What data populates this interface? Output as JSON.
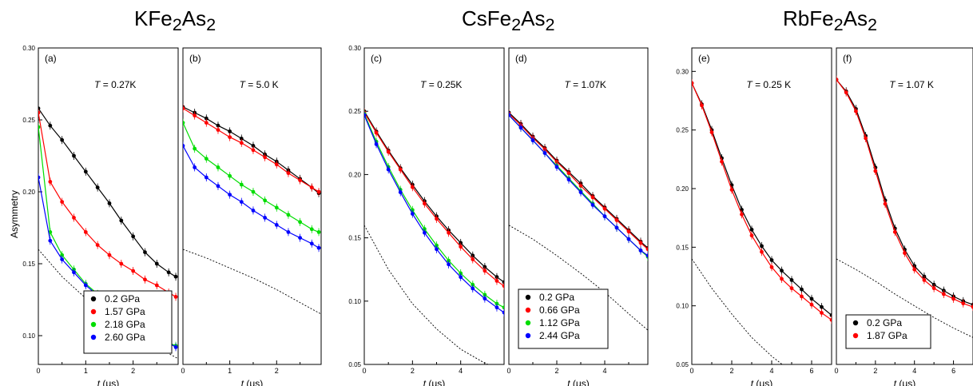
{
  "figure": {
    "titles": [
      {
        "text": "KFe",
        "sub1": "2",
        "mid": "As",
        "sub2": "2"
      },
      {
        "text": "CsFe",
        "sub1": "2",
        "mid": "As",
        "sub2": "2"
      },
      {
        "text": "RbFe",
        "sub1": "2",
        "mid": "As",
        "sub2": "2"
      }
    ],
    "ylabel": "Asymmetry",
    "colors": {
      "0.2 GPa": "#000000",
      "1.57 GPa": "#ff0000",
      "2.18 GPa": "#00dd00",
      "2.60 GPa": "#0000ff",
      "0.66 GPa": "#ff0000",
      "1.12 GPa": "#00dd00",
      "2.44 GPa": "#0000ff",
      "1.87 GPa": "#ff0000"
    }
  },
  "chart_data": [
    {
      "type": "scatter",
      "panel": "(a)",
      "group": "KFe2As2",
      "annotation": {
        "prefix": "T",
        "value": " = 0.27K"
      },
      "xlabel": "t (μs)",
      "xlim": [
        0,
        2.95
      ],
      "xticks": [
        0,
        1,
        2
      ],
      "ylim": [
        0.08,
        0.3
      ],
      "yticks": [
        0.1,
        0.15,
        0.2,
        0.25,
        0.3
      ],
      "legend": "bottom-right",
      "series": [
        {
          "name": "0.2 GPa",
          "x": [
            0,
            0.25,
            0.5,
            0.75,
            1.0,
            1.25,
            1.5,
            1.75,
            2.0,
            2.25,
            2.5,
            2.75,
            2.9
          ],
          "y": [
            0.258,
            0.246,
            0.236,
            0.225,
            0.214,
            0.203,
            0.192,
            0.18,
            0.169,
            0.158,
            0.15,
            0.144,
            0.141
          ]
        },
        {
          "name": "1.57 GPa",
          "x": [
            0,
            0.25,
            0.5,
            0.75,
            1.0,
            1.25,
            1.5,
            1.75,
            2.0,
            2.25,
            2.5,
            2.75,
            2.9
          ],
          "y": [
            0.255,
            0.207,
            0.193,
            0.182,
            0.172,
            0.163,
            0.156,
            0.15,
            0.145,
            0.139,
            0.135,
            0.13,
            0.127
          ]
        },
        {
          "name": "2.18 GPa",
          "x": [
            0,
            0.25,
            0.5,
            0.75,
            1.0,
            1.25,
            1.5,
            1.75,
            2.0,
            2.25,
            2.5,
            2.75,
            2.9
          ],
          "y": [
            0.245,
            0.172,
            0.156,
            0.146,
            0.136,
            0.129,
            0.122,
            0.115,
            0.11,
            0.104,
            0.099,
            0.095,
            0.093
          ]
        },
        {
          "name": "2.60 GPa",
          "x": [
            0,
            0.25,
            0.5,
            0.75,
            1.0,
            1.25,
            1.5,
            1.75,
            2.0,
            2.25,
            2.5,
            2.75,
            2.9
          ],
          "y": [
            0.21,
            0.166,
            0.153,
            0.144,
            0.135,
            0.128,
            0.121,
            0.114,
            0.109,
            0.103,
            0.099,
            0.095,
            0.092
          ]
        }
      ],
      "reference_curve": {
        "x": [
          0,
          0.5,
          1.0,
          1.5,
          2.0,
          2.5,
          2.95
        ],
        "y": [
          0.16,
          0.141,
          0.126,
          0.113,
          0.102,
          0.092,
          0.084
        ]
      }
    },
    {
      "type": "scatter",
      "panel": "(b)",
      "group": "KFe2As2",
      "annotation": {
        "prefix": "T",
        "value": " = 5.0 K"
      },
      "xlabel": "t (μs)",
      "xlim": [
        0,
        2.95
      ],
      "xticks": [
        0,
        1,
        2
      ],
      "ylim": [
        0.08,
        0.3
      ],
      "legend": "none",
      "series": [
        {
          "name": "0.2 GPa",
          "x": [
            0,
            0.25,
            0.5,
            0.75,
            1.0,
            1.25,
            1.5,
            1.75,
            2.0,
            2.25,
            2.5,
            2.75,
            2.9
          ],
          "y": [
            0.259,
            0.255,
            0.251,
            0.246,
            0.242,
            0.237,
            0.232,
            0.226,
            0.221,
            0.215,
            0.209,
            0.203,
            0.199
          ]
        },
        {
          "name": "1.57 GPa",
          "x": [
            0,
            0.25,
            0.5,
            0.75,
            1.0,
            1.25,
            1.5,
            1.75,
            2.0,
            2.25,
            2.5,
            2.75,
            2.9
          ],
          "y": [
            0.258,
            0.253,
            0.248,
            0.243,
            0.238,
            0.234,
            0.229,
            0.224,
            0.219,
            0.213,
            0.208,
            0.203,
            0.2
          ]
        },
        {
          "name": "2.18 GPa",
          "x": [
            0,
            0.25,
            0.5,
            0.75,
            1.0,
            1.25,
            1.5,
            1.75,
            2.0,
            2.25,
            2.5,
            2.75,
            2.9
          ],
          "y": [
            0.248,
            0.23,
            0.223,
            0.217,
            0.211,
            0.205,
            0.2,
            0.194,
            0.189,
            0.184,
            0.179,
            0.174,
            0.172
          ]
        },
        {
          "name": "2.60 GPa",
          "x": [
            0,
            0.25,
            0.5,
            0.75,
            1.0,
            1.25,
            1.5,
            1.75,
            2.0,
            2.25,
            2.5,
            2.75,
            2.9
          ],
          "y": [
            0.232,
            0.217,
            0.21,
            0.204,
            0.198,
            0.193,
            0.187,
            0.182,
            0.177,
            0.172,
            0.168,
            0.164,
            0.161
          ]
        }
      ],
      "reference_curve": {
        "x": [
          0,
          0.5,
          1.0,
          1.5,
          2.0,
          2.5,
          2.95
        ],
        "y": [
          0.16,
          0.154,
          0.147,
          0.14,
          0.132,
          0.123,
          0.115
        ]
      }
    },
    {
      "type": "scatter",
      "panel": "(c)",
      "group": "CsFe2As2",
      "annotation": {
        "prefix": "T",
        "value": " = 0.25K"
      },
      "xlabel": "t (μs)",
      "xlim": [
        0,
        5.8
      ],
      "xticks": [
        0,
        2,
        4
      ],
      "ylim": [
        0.05,
        0.3
      ],
      "yticks": [
        0.05,
        0.1,
        0.15,
        0.2,
        0.25,
        0.3
      ],
      "legend": "none",
      "series": [
        {
          "name": "0.2 GPa",
          "x": [
            0,
            0.5,
            1.0,
            1.5,
            2.0,
            2.5,
            3.0,
            3.5,
            4.0,
            4.5,
            5.0,
            5.5,
            5.8
          ],
          "y": [
            0.25,
            0.234,
            0.219,
            0.205,
            0.192,
            0.179,
            0.167,
            0.156,
            0.146,
            0.136,
            0.127,
            0.119,
            0.115
          ]
        },
        {
          "name": "0.66 GPa",
          "x": [
            0,
            0.5,
            1.0,
            1.5,
            2.0,
            2.5,
            3.0,
            3.5,
            4.0,
            4.5,
            5.0,
            5.5,
            5.8
          ],
          "y": [
            0.249,
            0.233,
            0.218,
            0.204,
            0.19,
            0.177,
            0.165,
            0.154,
            0.143,
            0.133,
            0.124,
            0.116,
            0.112
          ]
        },
        {
          "name": "1.12 GPa",
          "x": [
            0,
            0.5,
            1.0,
            1.5,
            2.0,
            2.5,
            3.0,
            3.5,
            4.0,
            4.5,
            5.0,
            5.5,
            5.8
          ],
          "y": [
            0.248,
            0.226,
            0.206,
            0.188,
            0.172,
            0.157,
            0.144,
            0.132,
            0.122,
            0.113,
            0.105,
            0.098,
            0.095
          ]
        },
        {
          "name": "2.44 GPa",
          "x": [
            0,
            0.5,
            1.0,
            1.5,
            2.0,
            2.5,
            3.0,
            3.5,
            4.0,
            4.5,
            5.0,
            5.5,
            5.8
          ],
          "y": [
            0.247,
            0.224,
            0.204,
            0.186,
            0.169,
            0.154,
            0.141,
            0.129,
            0.119,
            0.11,
            0.102,
            0.095,
            0.091
          ]
        }
      ],
      "reference_curve": {
        "x": [
          0,
          1,
          2,
          3,
          4,
          5,
          5.8
        ],
        "y": [
          0.16,
          0.125,
          0.098,
          0.078,
          0.062,
          0.051,
          0.045
        ]
      }
    },
    {
      "type": "scatter",
      "panel": "(d)",
      "group": "CsFe2As2",
      "annotation": {
        "prefix": "T",
        "value": " = 1.07K"
      },
      "xlabel": "t (μs)",
      "xlim": [
        0,
        5.8
      ],
      "xticks": [
        0,
        2,
        4
      ],
      "ylim": [
        0.05,
        0.3
      ],
      "legend": "bottom-left",
      "series": [
        {
          "name": "0.2 GPa",
          "x": [
            0,
            0.5,
            1.0,
            1.5,
            2.0,
            2.5,
            3.0,
            3.5,
            4.0,
            4.5,
            5.0,
            5.5,
            5.8
          ],
          "y": [
            0.249,
            0.24,
            0.23,
            0.221,
            0.211,
            0.202,
            0.193,
            0.183,
            0.174,
            0.165,
            0.156,
            0.147,
            0.142
          ]
        },
        {
          "name": "0.66 GPa",
          "x": [
            0,
            0.5,
            1.0,
            1.5,
            2.0,
            2.5,
            3.0,
            3.5,
            4.0,
            4.5,
            5.0,
            5.5,
            5.8
          ],
          "y": [
            0.248,
            0.239,
            0.229,
            0.22,
            0.21,
            0.201,
            0.191,
            0.182,
            0.173,
            0.164,
            0.155,
            0.146,
            0.141
          ]
        },
        {
          "name": "1.12 GPa",
          "x": [
            0,
            0.5,
            1.0,
            1.5,
            2.0,
            2.5,
            3.0,
            3.5,
            4.0,
            4.5,
            5.0,
            5.5,
            5.8
          ],
          "y": [
            0.247,
            0.237,
            0.227,
            0.217,
            0.207,
            0.197,
            0.187,
            0.177,
            0.167,
            0.158,
            0.149,
            0.14,
            0.135
          ]
        },
        {
          "name": "2.44 GPa",
          "x": [
            0,
            0.5,
            1.0,
            1.5,
            2.0,
            2.5,
            3.0,
            3.5,
            4.0,
            4.5,
            5.0,
            5.5,
            5.8
          ],
          "y": [
            0.247,
            0.237,
            0.227,
            0.217,
            0.206,
            0.196,
            0.186,
            0.176,
            0.167,
            0.158,
            0.149,
            0.14,
            0.136
          ]
        }
      ],
      "reference_curve": {
        "x": [
          0,
          1,
          2,
          3,
          4,
          5,
          5.8
        ],
        "y": [
          0.16,
          0.149,
          0.136,
          0.122,
          0.107,
          0.09,
          0.077
        ]
      }
    },
    {
      "type": "scatter",
      "panel": "(e)",
      "group": "RbFe2As2",
      "annotation": {
        "prefix": "T",
        "value": " = 0.25 K"
      },
      "xlabel": "t (μs)",
      "xlim": [
        0,
        7
      ],
      "xticks": [
        0,
        2,
        4,
        6
      ],
      "ylim": [
        0.05,
        0.32
      ],
      "yticks": [
        0.05,
        0.1,
        0.15,
        0.2,
        0.25,
        0.3
      ],
      "legend": "none",
      "series": [
        {
          "name": "0.2 GPa",
          "x": [
            0,
            0.5,
            1.0,
            1.5,
            2.0,
            2.5,
            3.0,
            3.5,
            4.0,
            4.5,
            5.0,
            5.5,
            6.0,
            6.5,
            7.0
          ],
          "y": [
            0.29,
            0.272,
            0.25,
            0.226,
            0.203,
            0.182,
            0.165,
            0.151,
            0.139,
            0.13,
            0.122,
            0.114,
            0.106,
            0.099,
            0.092
          ]
        },
        {
          "name": "1.87 GPa",
          "x": [
            0,
            0.5,
            1.0,
            1.5,
            2.0,
            2.5,
            3.0,
            3.5,
            4.0,
            4.5,
            5.0,
            5.5,
            6.0,
            6.5,
            7.0
          ],
          "y": [
            0.29,
            0.271,
            0.248,
            0.223,
            0.199,
            0.178,
            0.16,
            0.146,
            0.133,
            0.123,
            0.115,
            0.108,
            0.101,
            0.094,
            0.088
          ]
        }
      ],
      "reference_curve": {
        "x": [
          0,
          1,
          2,
          3,
          4,
          4.6
        ],
        "y": [
          0.14,
          0.115,
          0.093,
          0.073,
          0.057,
          0.049
        ]
      }
    },
    {
      "type": "scatter",
      "panel": "(f)",
      "group": "RbFe2As2",
      "annotation": {
        "prefix": "T",
        "value": " = 1.07 K"
      },
      "xlabel": "t (μs)",
      "xlim": [
        0,
        7
      ],
      "xticks": [
        0,
        2,
        4,
        6
      ],
      "ylim": [
        0.05,
        0.32
      ],
      "legend": "bottom-left",
      "series": [
        {
          "name": "0.2 GPa",
          "x": [
            0,
            0.5,
            1.0,
            1.5,
            2.0,
            2.5,
            3.0,
            3.5,
            4.0,
            4.5,
            5.0,
            5.5,
            6.0,
            6.5,
            7.0
          ],
          "y": [
            0.293,
            0.283,
            0.268,
            0.245,
            0.218,
            0.19,
            0.166,
            0.148,
            0.134,
            0.125,
            0.118,
            0.113,
            0.108,
            0.104,
            0.101
          ]
        },
        {
          "name": "1.87 GPa",
          "x": [
            0,
            0.5,
            1.0,
            1.5,
            2.0,
            2.5,
            3.0,
            3.5,
            4.0,
            4.5,
            5.0,
            5.5,
            6.0,
            6.5,
            7.0
          ],
          "y": [
            0.293,
            0.282,
            0.266,
            0.243,
            0.215,
            0.187,
            0.163,
            0.145,
            0.131,
            0.122,
            0.115,
            0.11,
            0.106,
            0.102,
            0.099
          ]
        }
      ],
      "reference_curve": {
        "x": [
          0,
          1,
          2,
          3,
          4,
          5,
          6,
          7
        ],
        "y": [
          0.14,
          0.131,
          0.121,
          0.11,
          0.1,
          0.09,
          0.081,
          0.073
        ]
      }
    }
  ]
}
